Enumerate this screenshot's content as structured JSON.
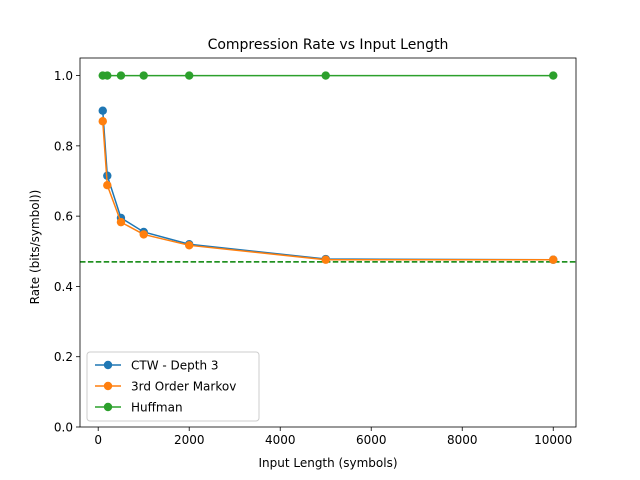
{
  "chart_data": {
    "type": "line",
    "title": "Compression Rate vs Input Length",
    "xlabel": "Input Length (symbols)",
    "ylabel": "Rate (bits/symbol))",
    "xlim": [
      -400,
      10500
    ],
    "ylim": [
      0.0,
      1.05
    ],
    "xticks": [
      0,
      2000,
      4000,
      6000,
      8000,
      10000
    ],
    "yticks": [
      0.0,
      0.2,
      0.4,
      0.6,
      0.8,
      1.0
    ],
    "xtick_labels": [
      "0",
      "2000",
      "4000",
      "6000",
      "8000",
      "10000"
    ],
    "ytick_labels": [
      "0.0",
      "0.2",
      "0.4",
      "0.6",
      "0.8",
      "1.0"
    ],
    "grid": false,
    "legend_position": "lower-left",
    "series": [
      {
        "name": "CTW - Depth 3",
        "color": "#1f77b4",
        "marker": "circle",
        "x": [
          100,
          200,
          500,
          1000,
          2000,
          5000,
          10000
        ],
        "y": [
          0.9,
          0.715,
          0.595,
          0.555,
          0.52,
          0.478,
          0.476
        ]
      },
      {
        "name": "3rd Order Markov",
        "color": "#ff7f0e",
        "marker": "circle",
        "x": [
          100,
          200,
          500,
          1000,
          2000,
          5000,
          10000
        ],
        "y": [
          0.87,
          0.688,
          0.583,
          0.548,
          0.517,
          0.476,
          0.476
        ]
      },
      {
        "name": "Huffman",
        "color": "#2ca02c",
        "marker": "circle",
        "x": [
          100,
          200,
          500,
          1000,
          2000,
          5000,
          10000
        ],
        "y": [
          1.0,
          1.0,
          1.0,
          1.0,
          1.0,
          1.0,
          1.0
        ]
      }
    ],
    "reference_lines": [
      {
        "orientation": "horizontal",
        "y": 0.47,
        "color": "#008000",
        "style": "dashed"
      }
    ]
  }
}
